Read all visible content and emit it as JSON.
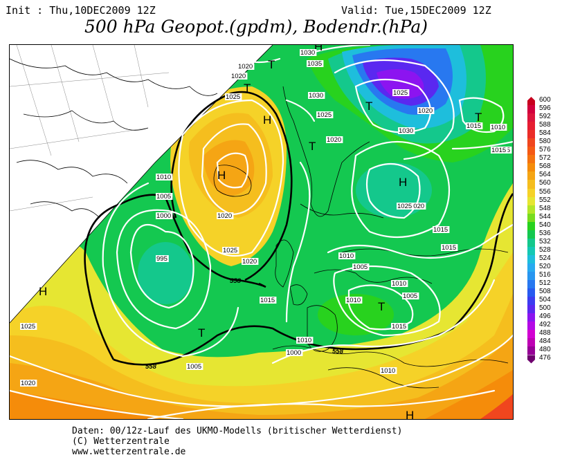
{
  "header": {
    "init": "Init : Thu,10DEC2009 12Z",
    "valid": "Valid: Tue,15DEC2009 12Z",
    "title": "500 hPa Geopot.(gpdm), Bodendr.(hPa)"
  },
  "footer": {
    "line1": "Daten: 00/12z-Lauf des UKMO-Modells (britischer Wetterdienst)",
    "line2": "(C) Wetterzentrale",
    "line3": "www.wetterzentrale.de"
  },
  "legend": {
    "values": [
      "600",
      "596",
      "592",
      "588",
      "584",
      "580",
      "576",
      "572",
      "568",
      "564",
      "560",
      "556",
      "552",
      "548",
      "544",
      "540",
      "536",
      "532",
      "528",
      "524",
      "520",
      "516",
      "512",
      "508",
      "504",
      "500",
      "496",
      "492",
      "488",
      "484",
      "480",
      "476"
    ],
    "colors": [
      "#c8001e",
      "#d2003c",
      "#dc143c",
      "#e61e32",
      "#eb2d28",
      "#f0461e",
      "#f55a14",
      "#f5730f",
      "#f58c0a",
      "#f5a514",
      "#f5be1e",
      "#f5d228",
      "#e6e632",
      "#b4e628",
      "#78dc1e",
      "#28d21e",
      "#14c850",
      "#14c88c",
      "#14c8b4",
      "#1ebedc",
      "#28aaf0",
      "#2896f0",
      "#2878f0",
      "#285af0",
      "#3c3cf0",
      "#5a28f0",
      "#8c14f0",
      "#b40ae6",
      "#d200d2",
      "#be00b4",
      "#960096",
      "#6e006e"
    ]
  },
  "map": {
    "pressure_labels": [
      "1020",
      "1020",
      "1025",
      "1030",
      "1035",
      "1030",
      "1025",
      "1020",
      "1015",
      "1015",
      "1010",
      "1005",
      "1000",
      "995",
      "1025",
      "1020",
      "1015",
      "1010",
      "1005",
      "1000",
      "1010",
      "1005",
      "1010",
      "1015",
      "1020",
      "1025",
      "1030",
      "1015",
      "1020",
      "1025",
      "1010",
      "1015",
      "1020",
      "1015",
      "1010",
      "1005",
      "1010",
      "1020",
      "1025"
    ],
    "contour_labels": [
      "558",
      "558",
      "558"
    ],
    "high_symbol": "H",
    "low_symbol": "T"
  }
}
